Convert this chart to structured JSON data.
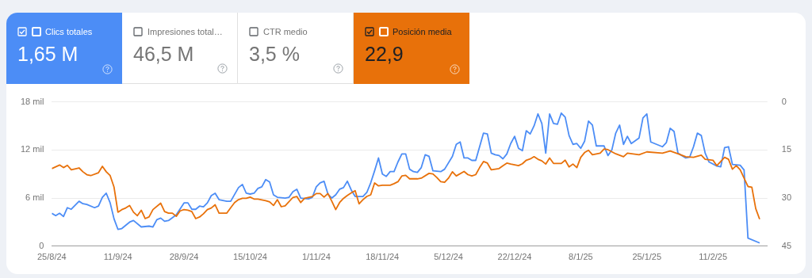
{
  "chart_data": {
    "type": "line",
    "annotations": [
      "1,65 M",
      "Impresiones total…",
      "46,5 M",
      "CTR medio",
      "3,5 %",
      "22,9"
    ],
    "legend": "top left",
    "grid": "y",
    "marker": "none",
    "xlim": [
      "2024-08-25",
      "2025-02-25"
    ],
    "xticks": [
      {
        "value": "2024-08-25",
        "label": "25/8/24"
      },
      {
        "value": "2024-09-11",
        "label": "11/9/24"
      },
      {
        "value": "2024-09-28",
        "label": "28/9/24"
      },
      {
        "value": "2024-10-15",
        "label": "15/10/24"
      },
      {
        "value": "2024-11-01",
        "label": "1/11/24"
      },
      {
        "value": "2024-11-18",
        "label": "18/11/24"
      },
      {
        "value": "2024-12-05",
        "label": "5/12/24"
      },
      {
        "value": "2024-12-22",
        "label": "22/12/24"
      },
      {
        "value": "2025-01-08",
        "label": "8/1/25"
      },
      {
        "value": "2025-01-25",
        "label": "25/1/25"
      },
      {
        "value": "2025-02-11",
        "label": "11/2/25"
      }
    ],
    "ylim": [
      0,
      18
    ],
    "yticks": [
      0,
      {
        "value": 6,
        "label": "6 mil"
      },
      {
        "value": 12,
        "label": "12 mil"
      },
      {
        "value": 18,
        "label": "18 mil"
      }
    ],
    "y2lim": [
      45,
      0
    ],
    "y2ticks": [
      0,
      15,
      30,
      45
    ],
    "series": [
      {
        "name": "Clics totales",
        "color": "#4c8df6",
        "axis": "y",
        "x": [
          "2024-08-25",
          "2024-08-26",
          "2024-08-27",
          "2024-08-28",
          "2024-08-29",
          "2024-08-30",
          "2024-09-01",
          "2024-09-02",
          "2024-09-03",
          "2024-09-05",
          "2024-09-06",
          "2024-09-07",
          "2024-09-08",
          "2024-09-09",
          "2024-09-10",
          "2024-09-11",
          "2024-09-12",
          "2024-09-14",
          "2024-09-15",
          "2024-09-17",
          "2024-09-19",
          "2024-09-20",
          "2024-09-21",
          "2024-09-22",
          "2024-09-23",
          "2024-09-24",
          "2024-09-26",
          "2024-09-28",
          "2024-09-29",
          "2024-09-30",
          "2024-10-01",
          "2024-10-02",
          "2024-10-03",
          "2024-10-04",
          "2024-10-05",
          "2024-10-06",
          "2024-10-07",
          "2024-10-08",
          "2024-10-09",
          "2024-10-10",
          "2024-10-12",
          "2024-10-13",
          "2024-10-14",
          "2024-10-15",
          "2024-10-16",
          "2024-10-17",
          "2024-10-18",
          "2024-10-19",
          "2024-10-20",
          "2024-10-21",
          "2024-10-22",
          "2024-10-24",
          "2024-10-25",
          "2024-10-26",
          "2024-10-27",
          "2024-10-28",
          "2024-10-30",
          "2024-10-31",
          "2024-11-01",
          "2024-11-02",
          "2024-11-03",
          "2024-11-04",
          "2024-11-05",
          "2024-11-06",
          "2024-11-07",
          "2024-11-08",
          "2024-11-09",
          "2024-11-10",
          "2024-11-11",
          "2024-11-13",
          "2024-11-14",
          "2024-11-15",
          "2024-11-16",
          "2024-11-17",
          "2024-11-18",
          "2024-11-19",
          "2024-11-20",
          "2024-11-21",
          "2024-11-22",
          "2024-11-23",
          "2024-11-24",
          "2024-11-25",
          "2024-11-26",
          "2024-11-27",
          "2024-11-28",
          "2024-11-29",
          "2024-11-30",
          "2024-12-01",
          "2024-12-03",
          "2024-12-04",
          "2024-12-06",
          "2024-12-07",
          "2024-12-08",
          "2024-12-09",
          "2024-12-10",
          "2024-12-11",
          "2024-12-12",
          "2024-12-13",
          "2024-12-14",
          "2024-12-15",
          "2024-12-16",
          "2024-12-17",
          "2024-12-18",
          "2024-12-19",
          "2024-12-20",
          "2024-12-21",
          "2024-12-22",
          "2024-12-23",
          "2024-12-24",
          "2024-12-25",
          "2024-12-26",
          "2024-12-27",
          "2024-12-28",
          "2024-12-29",
          "2024-12-30",
          "2024-12-31",
          "2025-01-01",
          "2025-01-02",
          "2025-01-03",
          "2025-01-04",
          "2025-01-05",
          "2025-01-06",
          "2025-01-07",
          "2025-01-08",
          "2025-01-09",
          "2025-01-10",
          "2025-01-11",
          "2025-01-12",
          "2025-01-14",
          "2025-01-15",
          "2025-01-16",
          "2025-01-17",
          "2025-01-18",
          "2025-01-19",
          "2025-01-20",
          "2025-01-21",
          "2025-01-23",
          "2025-01-24",
          "2025-01-25",
          "2025-01-26",
          "2025-01-29",
          "2025-01-30",
          "2025-01-31",
          "2025-02-01",
          "2025-02-02",
          "2025-02-04",
          "2025-02-05",
          "2025-02-06",
          "2025-02-07",
          "2025-02-08",
          "2025-02-09",
          "2025-02-10",
          "2025-02-12",
          "2025-02-13",
          "2025-02-14",
          "2025-02-15",
          "2025-02-16",
          "2025-02-18",
          "2025-02-19",
          "2025-02-20",
          "2025-02-23"
        ],
        "values": [
          4.1,
          3.8,
          4.1,
          3.7,
          4.8,
          4.6,
          5.6,
          5.3,
          5.2,
          4.8,
          5.0,
          6.1,
          6.6,
          5.4,
          3.4,
          2.1,
          2.2,
          3.0,
          3.2,
          2.4,
          2.5,
          2.4,
          3.3,
          3.5,
          3.1,
          3.2,
          3.9,
          5.4,
          5.4,
          4.6,
          4.6,
          5.0,
          4.9,
          5.4,
          6.3,
          6.6,
          5.8,
          5.7,
          5.6,
          5.6,
          7.3,
          7.7,
          6.6,
          6.5,
          6.6,
          7.2,
          7.4,
          8.3,
          8.0,
          6.4,
          6.1,
          6.0,
          6.1,
          6.8,
          7.1,
          6.0,
          5.9,
          6.1,
          7.4,
          7.9,
          8.1,
          6.5,
          6.0,
          6.4,
          7.1,
          7.3,
          8.1,
          7.0,
          6.2,
          6.2,
          6.7,
          7.9,
          9.4,
          11.0,
          9.0,
          8.7,
          9.3,
          9.3,
          10.5,
          11.5,
          11.5,
          9.6,
          9.3,
          9.2,
          9.8,
          11.4,
          11.2,
          9.4,
          9.3,
          9.6,
          11.2,
          12.7,
          13.0,
          11.0,
          11.0,
          10.7,
          10.7,
          12.4,
          14.1,
          14.0,
          11.6,
          11.4,
          11.3,
          10.9,
          11.5,
          12.8,
          13.7,
          12.2,
          11.9,
          14.4,
          14.0,
          15.0,
          16.5,
          15.3,
          11.6,
          16.5,
          15.3,
          15.2,
          16.6,
          16.1,
          13.8,
          12.7,
          12.8,
          12.2,
          13.1,
          15.6,
          15.1,
          12.5,
          12.5,
          11.3,
          12.0,
          14.1,
          15.1,
          12.7,
          13.7,
          12.8,
          13.5,
          16.0,
          16.5,
          13.0,
          12.4,
          12.9,
          14.7,
          14.3,
          11.6,
          11.0,
          11.1,
          12.4,
          14.1,
          13.8,
          11.6,
          10.5,
          10.0,
          9.9,
          12.3,
          12.4,
          10.2,
          10.1,
          9.5,
          1.0,
          0.4
        ]
      },
      {
        "name": "Posición media",
        "color": "#e8710a",
        "axis": "y2",
        "x": [
          "2024-08-25",
          "2024-08-27",
          "2024-08-28",
          "2024-08-29",
          "2024-08-30",
          "2024-09-01",
          "2024-09-02",
          "2024-09-03",
          "2024-09-04",
          "2024-09-06",
          "2024-09-07",
          "2024-09-08",
          "2024-09-09",
          "2024-09-10",
          "2024-09-11",
          "2024-09-12",
          "2024-09-13",
          "2024-09-14",
          "2024-09-15",
          "2024-09-16",
          "2024-09-17",
          "2024-09-18",
          "2024-09-19",
          "2024-09-20",
          "2024-09-22",
          "2024-09-23",
          "2024-09-24",
          "2024-09-25",
          "2024-09-26",
          "2024-09-27",
          "2024-09-28",
          "2024-09-29",
          "2024-09-30",
          "2024-10-01",
          "2024-10-02",
          "2024-10-03",
          "2024-10-04",
          "2024-10-05",
          "2024-10-06",
          "2024-10-07",
          "2024-10-09",
          "2024-10-10",
          "2024-10-11",
          "2024-10-12",
          "2024-10-13",
          "2024-10-14",
          "2024-10-15",
          "2024-10-16",
          "2024-10-17",
          "2024-10-19",
          "2024-10-20",
          "2024-10-21",
          "2024-10-22",
          "2024-10-23",
          "2024-10-24",
          "2024-10-26",
          "2024-10-27",
          "2024-10-28",
          "2024-10-29",
          "2024-10-31",
          "2024-11-01",
          "2024-11-02",
          "2024-11-03",
          "2024-11-04",
          "2024-11-05",
          "2024-11-06",
          "2024-11-07",
          "2024-11-08",
          "2024-11-09",
          "2024-11-10",
          "2024-11-11",
          "2024-11-12",
          "2024-11-13",
          "2024-11-14",
          "2024-11-15",
          "2024-11-16",
          "2024-11-17",
          "2024-11-18",
          "2024-11-20",
          "2024-11-21",
          "2024-11-22",
          "2024-11-23",
          "2024-11-24",
          "2024-11-25",
          "2024-11-27",
          "2024-11-28",
          "2024-11-30",
          "2024-12-01",
          "2024-12-02",
          "2024-12-03",
          "2024-12-04",
          "2024-12-05",
          "2024-12-06",
          "2024-12-07",
          "2024-12-09",
          "2024-12-10",
          "2024-12-11",
          "2024-12-12",
          "2024-12-13",
          "2024-12-14",
          "2024-12-15",
          "2024-12-16",
          "2024-12-17",
          "2024-12-18",
          "2024-12-19",
          "2024-12-20",
          "2024-12-21",
          "2024-12-23",
          "2024-12-24",
          "2024-12-25",
          "2024-12-26",
          "2024-12-27",
          "2024-12-28",
          "2024-12-29",
          "2024-12-30",
          "2024-12-31",
          "2025-01-01",
          "2025-01-03",
          "2025-01-04",
          "2025-01-05",
          "2025-01-06",
          "2025-01-07",
          "2025-01-08",
          "2025-01-09",
          "2025-01-10",
          "2025-01-11",
          "2025-01-13",
          "2025-01-14",
          "2025-01-15",
          "2025-01-17",
          "2025-01-19",
          "2025-01-20",
          "2025-01-23",
          "2025-01-25",
          "2025-01-29",
          "2025-01-31",
          "2025-02-02",
          "2025-02-04",
          "2025-02-06",
          "2025-02-08",
          "2025-02-09",
          "2025-02-11",
          "2025-02-12",
          "2025-02-14",
          "2025-02-15",
          "2025-02-16",
          "2025-02-17",
          "2025-02-18",
          "2025-02-20",
          "2025-02-21",
          "2025-02-22",
          "2025-02-23"
        ],
        "values": [
          20.8,
          19.7,
          20.5,
          19.8,
          21.2,
          20.6,
          21.8,
          22.7,
          23.0,
          22.1,
          20.1,
          21.8,
          23.0,
          26.6,
          34.4,
          33.6,
          33.1,
          32.3,
          34.4,
          35.5,
          33.8,
          36.4,
          35.9,
          33.6,
          31.6,
          34.2,
          34.7,
          34.7,
          35.7,
          34.0,
          33.6,
          33.8,
          34.2,
          36.4,
          35.9,
          34.9,
          33.6,
          33.1,
          32.1,
          34.7,
          34.7,
          33.0,
          31.4,
          30.5,
          30.1,
          30.1,
          29.7,
          30.3,
          30.3,
          30.8,
          31.2,
          32.3,
          30.5,
          32.7,
          32.4,
          29.8,
          29.5,
          31.4,
          30.1,
          29.5,
          28.6,
          28.6,
          29.7,
          28.6,
          31.0,
          33.6,
          31.4,
          30.1,
          29.2,
          28.4,
          27.7,
          31.8,
          30.5,
          29.5,
          29.0,
          25.3,
          26.2,
          26.0,
          26.0,
          25.5,
          24.9,
          23.1,
          22.9,
          24.0,
          24.0,
          23.8,
          22.3,
          22.5,
          23.6,
          24.9,
          25.1,
          23.8,
          21.8,
          23.1,
          21.7,
          22.7,
          23.1,
          22.7,
          20.5,
          18.6,
          19.1,
          21.2,
          21.0,
          20.8,
          19.9,
          19.1,
          19.4,
          19.9,
          19.3,
          18.2,
          17.8,
          17.1,
          17.9,
          18.4,
          19.4,
          17.5,
          19.2,
          19.2,
          18.2,
          20.3,
          19.4,
          20.5,
          17.3,
          15.8,
          15.1,
          16.5,
          16.0,
          14.7,
          14.9,
          16.2,
          17.1,
          16.0,
          16.5,
          15.6,
          16.0,
          15.3,
          16.2,
          17.1,
          17.3,
          16.6,
          17.9,
          18.2,
          19.9,
          17.3,
          17.9,
          21.0,
          19.9,
          21.2,
          26.4,
          26.6,
          33.3,
          36.6
        ]
      }
    ]
  }
}
